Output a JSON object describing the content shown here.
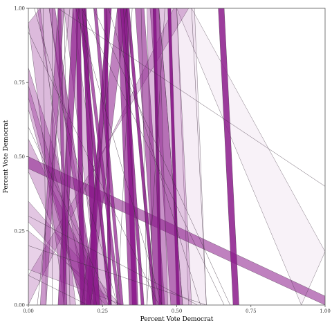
{
  "chart_data": {
    "type": "area",
    "xlabel": "Percent Vote Democrat",
    "ylabel": "Percent Vote Democrat",
    "xlim": [
      0,
      1
    ],
    "ylim": [
      0,
      1
    ],
    "x_ticks": [
      "0.00",
      "0.25",
      "0.50",
      "0.75",
      "1.00"
    ],
    "y_ticks": [
      "0.00",
      "0.25",
      "0.50",
      "0.75",
      "1.00"
    ],
    "grid": false,
    "fill_color": "#8b1a8b",
    "stroke_color": "#3a2a3a",
    "bands": [
      {
        "x0a": 0.64,
        "x0b": 0.66,
        "x1a": 0.69,
        "x1b": 0.71,
        "op": 0.85
      },
      {
        "x0a": 0.47,
        "x0b": 0.48,
        "x1a": 0.5,
        "x1b": 0.51,
        "op": 0.95
      },
      {
        "x0a": 0.42,
        "x0b": 0.43,
        "x1a": 0.44,
        "x1b": 0.45,
        "op": 0.95
      },
      {
        "x0a": 0.32,
        "x0b": 0.335,
        "x1a": 0.35,
        "x1b": 0.365,
        "op": 0.9
      },
      {
        "x0a": 0.3,
        "x0b": 0.33,
        "x1a": 0.34,
        "x1b": 0.37,
        "op": 0.7
      },
      {
        "x0a": 0.265,
        "x0b": 0.28,
        "x1a": 0.195,
        "x1b": 0.21,
        "op": 0.85
      },
      {
        "x0a": 0.255,
        "x0b": 0.265,
        "x1a": 0.27,
        "x1b": 0.28,
        "op": 0.9
      },
      {
        "x0a": 0.18,
        "x0b": 0.195,
        "x1a": 0.22,
        "x1b": 0.24,
        "op": 0.9
      },
      {
        "x0a": 0.16,
        "x0b": 0.175,
        "x1a": 0.175,
        "x1b": 0.19,
        "op": 0.85
      },
      {
        "x0a": 0.17,
        "x0b": 0.18,
        "x1a": 0.27,
        "x1b": 0.28,
        "op": 0.85
      },
      {
        "x0a": 0.15,
        "x0b": 0.17,
        "x1a": 0.1,
        "x1b": 0.12,
        "op": 0.7
      },
      {
        "x0a": 0.33,
        "x0b": 0.34,
        "x1a": 0.42,
        "x1b": 0.43,
        "op": 0.85
      },
      {
        "x0a": 0.36,
        "x0b": 0.39,
        "x1a": 0.43,
        "x1b": 0.46,
        "op": 0.6
      },
      {
        "x0a": 0.41,
        "x0b": 0.44,
        "x1a": 0.48,
        "x1b": 0.52,
        "op": 0.5
      },
      {
        "x0a": 0.07,
        "x0b": 0.09,
        "x1a": 0.21,
        "x1b": 0.23,
        "op": 0.55
      },
      {
        "x0a": 0.1,
        "x0b": 0.12,
        "x1a": 0.04,
        "x1b": 0.06,
        "op": 0.45
      },
      {
        "x0a": 0.3,
        "x0b": 0.33,
        "x1a": 0.18,
        "x1b": 0.21,
        "op": 0.55
      },
      {
        "x0a": 0.31,
        "x0b": 0.32,
        "x1a": 0.38,
        "x1b": 0.39,
        "op": 0.8
      },
      {
        "x0a": 0.18,
        "x0b": 0.19,
        "x1a": 0.3,
        "x1b": 0.31,
        "op": 0.7
      },
      {
        "x0a": 0.1,
        "x0b": 0.11,
        "x1a": 0.12,
        "x1b": 0.13,
        "op": 0.6
      },
      {
        "x0a": 0.22,
        "x0b": 0.23,
        "x1a": 0.31,
        "x1b": 0.32,
        "op": 0.7
      },
      {
        "x0a": 0.5,
        "x0b": 0.56,
        "x1a": 0.54,
        "x1b": 0.6,
        "op": 0.08
      },
      {
        "x0a": 0.42,
        "x0b": 0.5,
        "x1a": 0.45,
        "x1b": 0.55,
        "op": 0.25
      },
      {
        "x0a": 0.4,
        "x0b": 0.44,
        "x1a": 0.42,
        "x1b": 0.47,
        "op": 0.3
      }
    ],
    "wedges": [
      {
        "points": [
          [
            0.03,
            1.0
          ],
          [
            0.07,
            1.0
          ],
          [
            0.23,
            0.0
          ],
          [
            0.19,
            0.0
          ]
        ],
        "op": 0.3
      },
      {
        "points": [
          [
            0.12,
            1.0
          ],
          [
            0.15,
            1.0
          ],
          [
            0.28,
            0.0
          ],
          [
            0.24,
            0.0
          ]
        ],
        "op": 0.3
      },
      {
        "points": [
          [
            0.0,
            0.8
          ],
          [
            0.0,
            0.7
          ],
          [
            0.18,
            0.0
          ],
          [
            0.25,
            0.0
          ]
        ],
        "op": 0.35
      },
      {
        "points": [
          [
            0.0,
            0.56
          ],
          [
            0.0,
            0.45
          ],
          [
            0.2,
            0.0
          ],
          [
            0.27,
            0.0
          ]
        ],
        "op": 0.3
      },
      {
        "points": [
          [
            0.0,
            0.35
          ],
          [
            0.0,
            0.28
          ],
          [
            0.26,
            0.0
          ],
          [
            0.31,
            0.0
          ]
        ],
        "op": 0.25
      },
      {
        "points": [
          [
            0.0,
            0.46
          ],
          [
            0.0,
            0.5
          ],
          [
            1.0,
            0.03
          ],
          [
            1.0,
            0.0
          ]
        ],
        "op": 0.55
      },
      {
        "points": [
          [
            0.5,
            1.0
          ],
          [
            0.55,
            1.0
          ],
          [
            1.0,
            0.18
          ],
          [
            0.92,
            0.0
          ]
        ],
        "op": 0.06
      },
      {
        "points": [
          [
            0.0,
            0.0
          ],
          [
            0.0,
            0.1
          ],
          [
            0.54,
            1.0
          ],
          [
            0.49,
            1.0
          ]
        ],
        "op": 0.25
      },
      {
        "points": [
          [
            0.0,
            0.25
          ],
          [
            0.0,
            0.12
          ],
          [
            0.32,
            0.0
          ],
          [
            0.3,
            0.0
          ]
        ],
        "op": 0.2
      },
      {
        "points": [
          [
            0.0,
            0.95
          ],
          [
            0.04,
            1.0
          ],
          [
            0.16,
            0.0
          ],
          [
            0.12,
            0.0
          ]
        ],
        "op": 0.3
      },
      {
        "points": [
          [
            0.0,
            0.66
          ],
          [
            0.0,
            0.74
          ],
          [
            0.22,
            0.0
          ],
          [
            0.18,
            0.0
          ]
        ],
        "op": 0.3
      }
    ],
    "lines": [
      {
        "x0": 0.1,
        "y0": 1.0,
        "x1": 1.0,
        "y1": 0.4
      },
      {
        "x0": 0.18,
        "y0": 1.0,
        "x1": 0.66,
        "y1": 0.0
      },
      {
        "x0": 0.22,
        "y0": 1.0,
        "x1": 0.68,
        "y1": 0.0
      },
      {
        "x0": 0.02,
        "y0": 1.0,
        "x1": 0.3,
        "y1": 0.0
      },
      {
        "x0": 0.05,
        "y0": 1.0,
        "x1": 0.06,
        "y1": 0.0
      },
      {
        "x0": 0.08,
        "y0": 1.0,
        "x1": 0.08,
        "y1": 0.0
      },
      {
        "x0": 0.0,
        "y0": 0.92,
        "x1": 0.44,
        "y1": 0.0
      },
      {
        "x0": 0.0,
        "y0": 0.2,
        "x1": 0.6,
        "y1": 0.0
      },
      {
        "x0": 0.0,
        "y0": 0.1,
        "x1": 0.2,
        "y1": 0.0
      },
      {
        "x0": 0.55,
        "y0": 1.0,
        "x1": 0.6,
        "y1": 0.0
      },
      {
        "x0": 0.46,
        "y0": 1.0,
        "x1": 0.4,
        "y1": 0.0
      },
      {
        "x0": 0.35,
        "y0": 1.0,
        "x1": 0.3,
        "y1": 0.0
      },
      {
        "x0": 0.27,
        "y0": 1.0,
        "x1": 0.58,
        "y1": 0.0
      },
      {
        "x0": 0.0,
        "y0": 0.3,
        "x1": 0.57,
        "y1": 0.0
      },
      {
        "x0": 0.0,
        "y0": 0.6,
        "x1": 0.28,
        "y1": 0.0
      },
      {
        "x0": 0.12,
        "y0": 1.0,
        "x1": 0.14,
        "y1": 0.0
      },
      {
        "x0": 0.16,
        "y0": 1.0,
        "x1": 0.45,
        "y1": 0.0
      },
      {
        "x0": 0.38,
        "y0": 1.0,
        "x1": 0.4,
        "y1": 0.0
      },
      {
        "x0": 0.44,
        "y0": 1.0,
        "x1": 0.52,
        "y1": 0.0
      },
      {
        "x0": 0.14,
        "y0": 1.0,
        "x1": 0.03,
        "y1": 0.0
      }
    ]
  }
}
